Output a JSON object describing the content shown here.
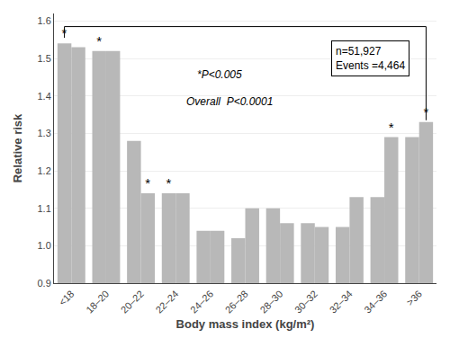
{
  "chart_data": {
    "type": "bar",
    "categories": [
      "<18",
      "18–20",
      "20–22",
      "22–24",
      "24–26",
      "26–28",
      "28–30",
      "30–32",
      "32–34",
      "34–36",
      ">36"
    ],
    "series": [
      {
        "color": "#b8b8b8",
        "values": [
          1.54,
          1.52,
          1.28,
          1.14,
          1.04,
          1.02,
          1.1,
          1.06,
          1.05,
          1.13,
          1.29
        ],
        "significant": [
          true,
          true,
          false,
          true,
          false,
          false,
          false,
          false,
          false,
          false,
          false
        ]
      },
      {
        "color": "#b8b8b8",
        "values": [
          1.53,
          1.52,
          1.14,
          1.14,
          1.04,
          1.1,
          1.06,
          1.05,
          1.13,
          1.29,
          1.33
        ],
        "significant": [
          false,
          false,
          true,
          false,
          false,
          false,
          false,
          false,
          false,
          true,
          true
        ]
      }
    ],
    "significance_mark": "*",
    "xlabel": "Body mass index (kg/m²)",
    "ylabel": "Relative risk",
    "ylim": [
      0.9,
      1.62
    ],
    "yticks": [
      0.9,
      {
        "value": 1.0,
        "label": "1.0"
      },
      1.1,
      1.2,
      1.3,
      1.4,
      1.5,
      1.6
    ],
    "grid": true,
    "annotations": [
      "*P<0.005",
      "Overall  P<0.0001"
    ],
    "info_box": [
      "n=51,927",
      "Events =4,464"
    ],
    "bracket": {
      "y": 1.585,
      "left_end": 1.555,
      "right_end": 1.335
    }
  }
}
